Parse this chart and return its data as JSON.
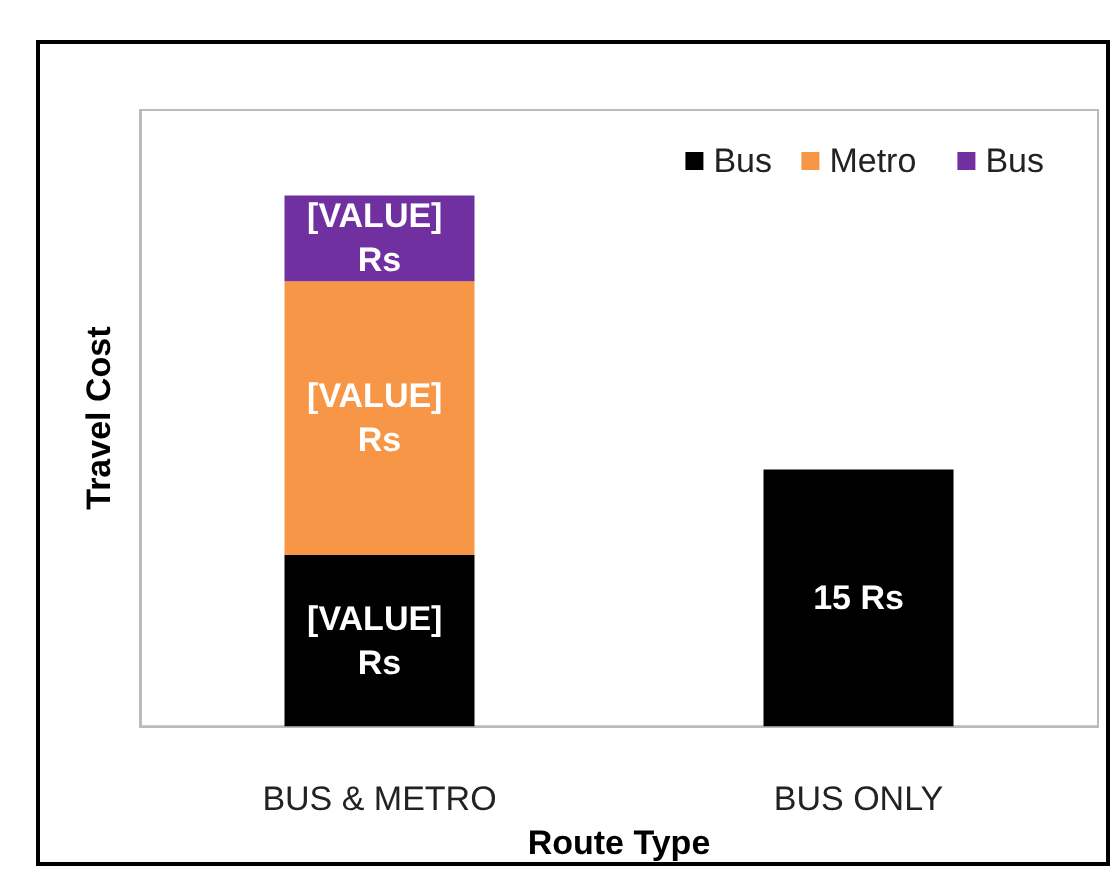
{
  "chart_data": {
    "type": "bar",
    "stacked": true,
    "ylim": [
      0,
      36
    ],
    "tick_labels": "x",
    "xlabel": "Route Type",
    "ylabel": "Travel Cost",
    "categories": [
      "BUS & METRO",
      "BUS ONLY"
    ],
    "legend": "top right",
    "grid": false,
    "series": [
      {
        "name": "Bus",
        "color": "#000000",
        "values": [
          10,
          15
        ],
        "value_labels": [
          "[VALUE] Rs",
          "15 Rs"
        ]
      },
      {
        "name": "Metro",
        "color": "#f79646",
        "values": [
          16,
          null
        ],
        "value_labels": [
          "[VALUE] Rs",
          null
        ]
      },
      {
        "name": "Bus",
        "color": "#7030a0",
        "values": [
          5,
          null
        ],
        "value_labels": [
          "[VALUE] Rs",
          null
        ]
      }
    ]
  }
}
